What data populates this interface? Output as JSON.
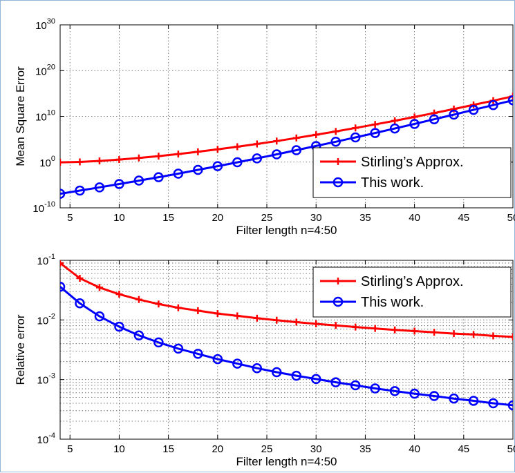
{
  "colors": {
    "stirling": "#ff0000",
    "this_work": "#0000ff"
  },
  "chart_data": [
    {
      "type": "line",
      "xlabel": "Filter length n=4:50",
      "ylabel": "Mean Square Error",
      "y_scale": "log",
      "xlim": [
        4,
        50
      ],
      "ylim_exponent": [
        -10,
        30
      ],
      "grid": true,
      "legend_position": "bottom-right",
      "x_ticks": [
        "5",
        "10",
        "15",
        "20",
        "25",
        "30",
        "35",
        "40",
        "45",
        "50"
      ],
      "y_ticks": [
        {
          "base": "10",
          "exp": "-10"
        },
        {
          "base": "10",
          "exp": "0"
        },
        {
          "base": "10",
          "exp": "10"
        },
        {
          "base": "10",
          "exp": "20"
        },
        {
          "base": "10",
          "exp": "30"
        }
      ],
      "x": [
        4,
        6,
        8,
        10,
        12,
        14,
        16,
        18,
        20,
        22,
        24,
        26,
        28,
        30,
        32,
        34,
        36,
        38,
        40,
        42,
        44,
        46,
        48,
        50
      ],
      "series": [
        {
          "name": "Stirling’s Approx.",
          "marker": "plus",
          "values": [
            0.9,
            1.1,
            1.8,
            3.6,
            8.2,
            20,
            57,
            180,
            620,
            2300,
            9300,
            40000,
            190000.0,
            950000.0,
            5000000.0,
            29000000.0,
            170000000.0,
            1100000000.0,
            7400000000.0,
            53000000000.0,
            400000000000.0,
            3200000000000.0,
            27000000000000.0,
            240000000000000.0
          ]
        },
        {
          "name": "This work.",
          "marker": "circle",
          "values": [
            1.2e-07,
            6e-07,
            3e-06,
            1.6e-05,
            9e-05,
            0.0005,
            0.003,
            0.02,
            0.13,
            0.9,
            6.5,
            50,
            400,
            3300,
            28000.0,
            250000.0,
            2300000.0,
            22000000.0,
            220000000.0,
            2300000000.0,
            24000000000.0,
            260000000000.0,
            2900000000000.0,
            33000000000000.0
          ]
        }
      ]
    },
    {
      "type": "line",
      "xlabel": "Filter length n=4:50",
      "ylabel": "Relative error",
      "y_scale": "log",
      "xlim": [
        4,
        50
      ],
      "ylim_exponent": [
        -4,
        -1
      ],
      "grid": true,
      "legend_position": "top-right",
      "x_ticks": [
        "5",
        "10",
        "15",
        "20",
        "25",
        "30",
        "35",
        "40",
        "45",
        "50"
      ],
      "y_ticks": [
        {
          "base": "10",
          "exp": "-4"
        },
        {
          "base": "10",
          "exp": "-3"
        },
        {
          "base": "10",
          "exp": "-2"
        },
        {
          "base": "10",
          "exp": "-1"
        }
      ],
      "x": [
        4,
        6,
        8,
        10,
        12,
        14,
        16,
        18,
        20,
        22,
        24,
        26,
        28,
        30,
        32,
        34,
        36,
        38,
        40,
        42,
        44,
        46,
        48,
        50
      ],
      "series": [
        {
          "name": "Stirling’s Approx.",
          "marker": "plus",
          "values": [
            0.09,
            0.05,
            0.035,
            0.027,
            0.022,
            0.0185,
            0.016,
            0.0143,
            0.0128,
            0.0117,
            0.0107,
            0.0099,
            0.0092,
            0.0086,
            0.0081,
            0.0076,
            0.0072,
            0.0068,
            0.0065,
            0.0062,
            0.0059,
            0.0057,
            0.0054,
            0.0052
          ]
        },
        {
          "name": "This work.",
          "marker": "circle",
          "values": [
            0.036,
            0.019,
            0.0115,
            0.0077,
            0.0055,
            0.0042,
            0.0033,
            0.0027,
            0.0022,
            0.00185,
            0.00155,
            0.00133,
            0.00116,
            0.00102,
            0.0009,
            0.0008,
            0.00071,
            0.00064,
            0.00058,
            0.00053,
            0.00048,
            0.00044,
            0.0004,
            0.00037
          ]
        }
      ]
    }
  ]
}
